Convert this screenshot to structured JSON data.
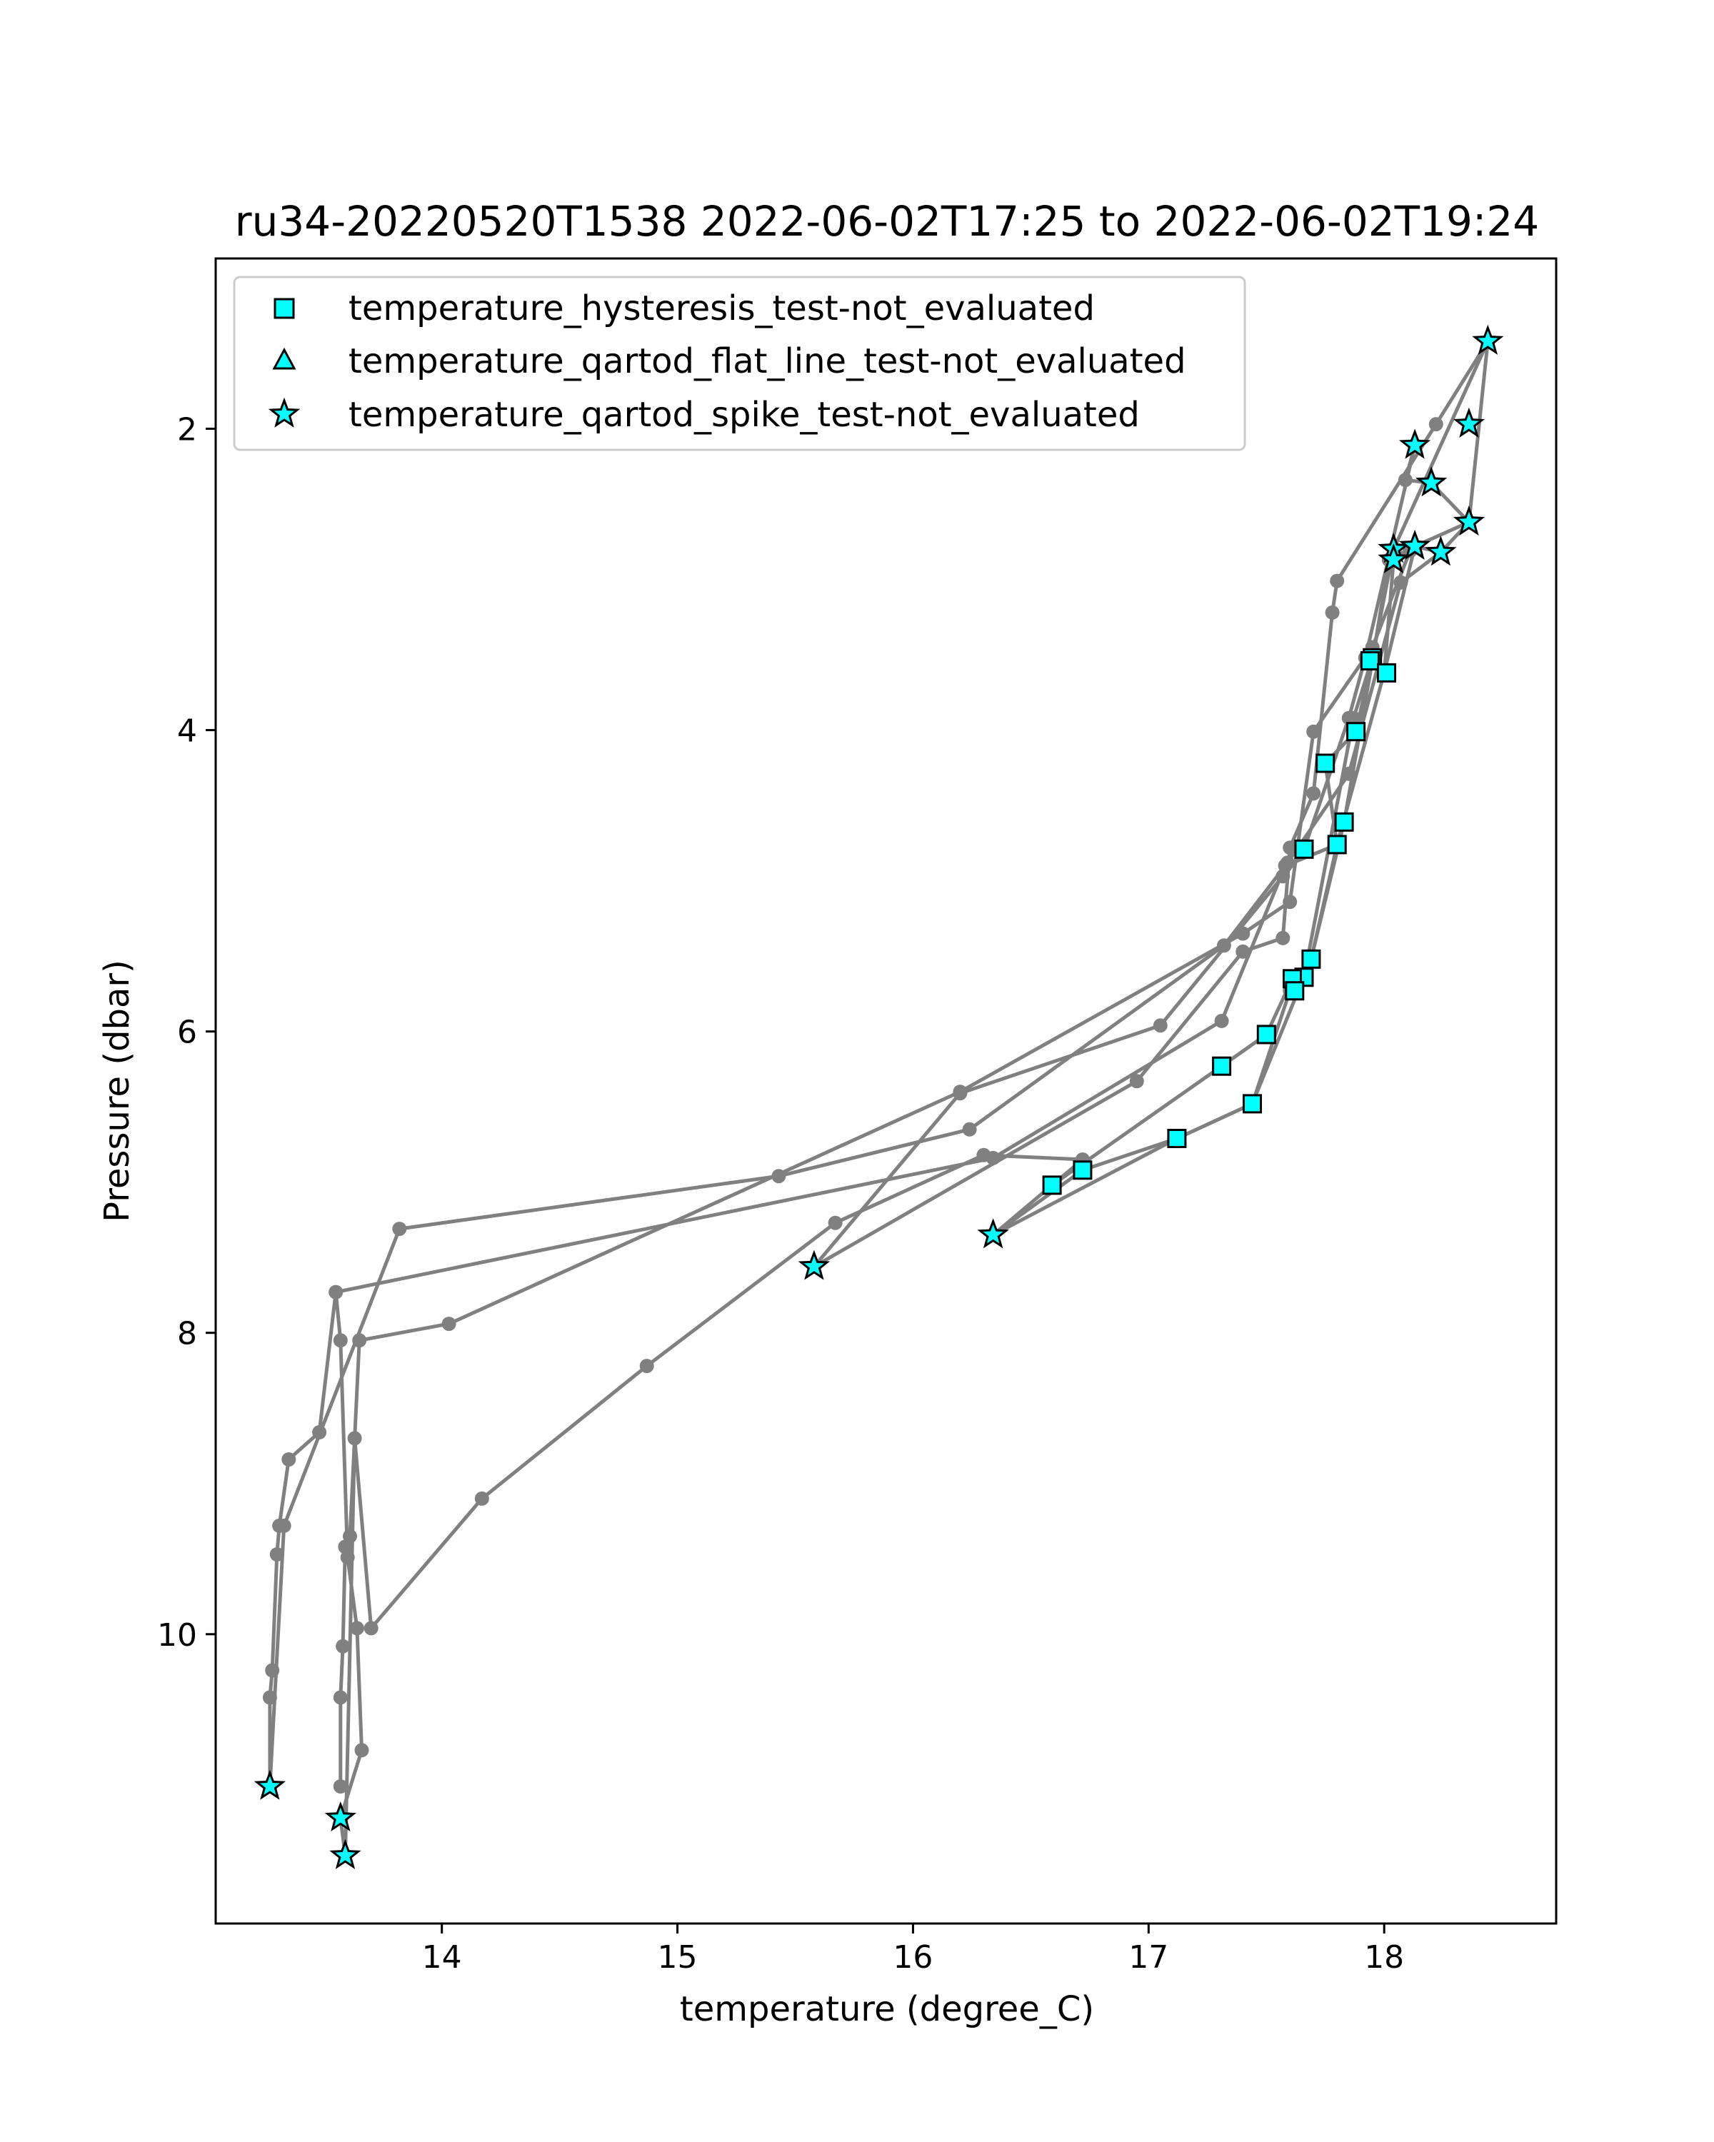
{
  "chart_data": {
    "type": "scatter",
    "title": "ru34-20220520T1538 2022-06-02T17:25 to 2022-06-02T19:24",
    "xlabel": "temperature (degree_C)",
    "ylabel": "Pressure (dbar)",
    "xlim": [
      13.04,
      18.73
    ],
    "ylim": [
      11.92,
      0.87
    ],
    "y_inverted": true,
    "x_ticks": [
      14,
      15,
      16,
      17,
      18
    ],
    "y_ticks": [
      2,
      4,
      6,
      8,
      10
    ],
    "grid": false,
    "legend_position": "upper-left",
    "colors": {
      "profile_line": "#808080",
      "marker_fill": "#00ffff",
      "marker_edge": "#000000"
    },
    "profiles": [
      {
        "x": [
          18.44,
          18.22,
          17.8,
          17.78,
          17.7,
          17.6,
          17.57,
          17.4,
          16.95,
          15.58
        ],
        "y": [
          1.42,
          1.97,
          3.01,
          3.22,
          4.42,
          4.78,
          5.38,
          5.47,
          6.33,
          7.56
        ]
      },
      {
        "x": [
          15.58,
          16.2,
          17.05,
          17.57,
          17.66,
          17.85,
          17.92,
          18.13
        ],
        "y": [
          7.56,
          6.41,
          5.96,
          4.97,
          4.79,
          3.92,
          3.52,
          2.11
        ]
      },
      {
        "x": [
          18.13,
          18.09,
          18.2,
          18.36,
          18.44,
          18.04,
          17.95,
          17.88,
          17.75
        ],
        "y": [
          2.11,
          2.34,
          2.36,
          2.62,
          1.42,
          2.8,
          3.52,
          4.01,
          4.22
        ]
      },
      {
        "x": [
          17.75,
          17.8,
          17.58,
          17.31,
          16.34,
          13.55,
          13.48,
          13.35,
          13.31,
          13.3,
          13.28,
          13.27,
          13.27
        ],
        "y": [
          4.22,
          4.76,
          4.9,
          5.93,
          6.84,
          7.73,
          8.66,
          8.84,
          9.28,
          9.47,
          10.24,
          10.42,
          11.01
        ]
      },
      {
        "x": [
          13.27,
          13.33,
          13.82,
          15.43,
          16.24,
          17.32,
          17.59,
          17.85,
          18.07,
          18.24
        ],
        "y": [
          11.01,
          9.28,
          7.31,
          6.96,
          6.65,
          5.43,
          4.88,
          4.29,
          3.02,
          2.82
        ]
      },
      {
        "x": [
          18.24,
          18.36,
          18.13,
          18.02,
          17.95,
          17.83,
          17.69,
          17.6,
          17.44,
          17.12,
          16.72,
          16.34
        ],
        "y": [
          2.82,
          2.62,
          2.78,
          2.87,
          3.54,
          4.61,
          5.52,
          5.73,
          6.48,
          6.71,
          6.92,
          7.35
        ]
      },
      {
        "x": [
          16.34,
          16.59,
          17.31,
          17.5,
          17.61,
          17.66,
          17.87,
          17.95,
          18.0,
          18.04,
          18.11
        ],
        "y": [
          7.35,
          7.02,
          6.23,
          6.02,
          5.65,
          5.64,
          3.92,
          3.52,
          3.62,
          2.87,
          2.81
        ]
      },
      {
        "x": [
          18.11,
          17.95,
          17.7,
          17.6,
          17.4,
          16.2,
          14.03,
          13.65,
          13.61,
          13.59,
          13.58,
          13.57,
          13.57
        ],
        "y": [
          2.81,
          3.45,
          4.01,
          5.14,
          5.35,
          6.4,
          7.94,
          8.05,
          9.35,
          9.42,
          10.08,
          10.42,
          11.01
        ]
      },
      {
        "x": [
          13.57,
          13.59,
          13.63,
          13.7,
          14.17,
          14.87,
          15.67,
          16.3,
          16.72,
          16.59
        ],
        "y": [
          11.22,
          11.47,
          8.7,
          9.96,
          9.1,
          8.22,
          7.27,
          6.82,
          6.85,
          7.02
        ]
      },
      {
        "x": [
          16.34,
          17.12,
          17.44,
          17.69,
          17.8,
          18.0,
          18.13,
          18.24
        ],
        "y": [
          7.35,
          6.71,
          6.48,
          5.52,
          4.76,
          3.62,
          2.78,
          2.82
        ]
      },
      {
        "x": [
          13.57,
          13.66,
          13.64,
          13.6,
          13.57,
          13.55
        ],
        "y": [
          11.22,
          10.77,
          9.96,
          9.49,
          8.05,
          7.73
        ]
      }
    ],
    "series": [
      {
        "name": "temperature_hysteresis_test-not_evaluated",
        "marker": "square",
        "x": [
          17.95,
          17.94,
          18.01,
          17.88,
          17.75,
          17.83,
          17.8,
          17.66,
          17.69,
          17.66,
          17.61,
          17.62,
          17.5,
          17.31,
          17.44,
          17.12,
          16.72,
          16.59
        ],
        "y": [
          3.52,
          3.54,
          3.62,
          4.01,
          4.22,
          4.61,
          4.76,
          4.79,
          5.52,
          5.64,
          5.65,
          5.73,
          6.02,
          6.23,
          6.48,
          6.71,
          6.92,
          7.02
        ]
      },
      {
        "name": "temperature_qartod_flat_line_test-not_evaluated",
        "marker": "triangle",
        "x": [],
        "y": []
      },
      {
        "name": "temperature_qartod_spike_test-not_evaluated",
        "marker": "star",
        "x": [
          18.44,
          18.36,
          18.13,
          18.2,
          18.36,
          18.04,
          18.13,
          18.24,
          18.04,
          16.34,
          15.58,
          13.27,
          13.57,
          13.59
        ],
        "y": [
          1.42,
          1.97,
          2.11,
          2.36,
          2.62,
          2.8,
          2.78,
          2.82,
          2.87,
          7.35,
          7.56,
          11.01,
          11.22,
          11.47
        ]
      }
    ]
  }
}
